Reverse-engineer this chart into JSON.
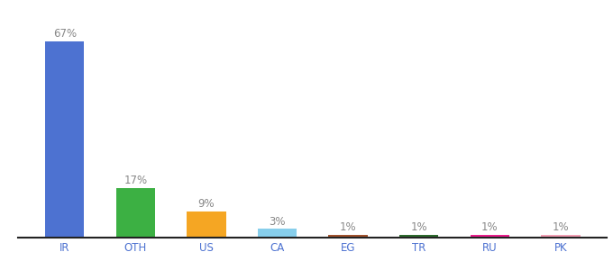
{
  "categories": [
    "IR",
    "OTH",
    "US",
    "CA",
    "EG",
    "TR",
    "RU",
    "PK"
  ],
  "values": [
    67,
    17,
    9,
    3,
    1,
    1,
    1,
    1
  ],
  "bar_colors": [
    "#4d72d1",
    "#3cb043",
    "#f5a623",
    "#87ceeb",
    "#a0522d",
    "#2d6b2d",
    "#e91e8c",
    "#f4a0b5"
  ],
  "labels": [
    "67%",
    "17%",
    "9%",
    "3%",
    "1%",
    "1%",
    "1%",
    "1%"
  ],
  "background_color": "#ffffff",
  "label_fontsize": 8.5,
  "tick_fontsize": 8.5,
  "tick_color": "#4d72d1",
  "label_color": "#888888"
}
